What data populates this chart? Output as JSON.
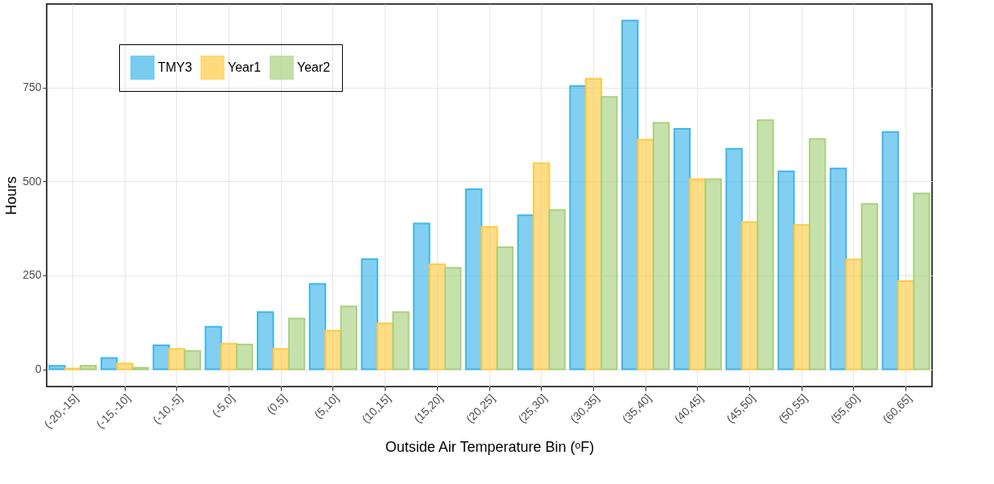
{
  "chart_data": {
    "type": "bar",
    "xlabel": "Outside Air Temperature Bin (ᵒF)",
    "ylabel": "Hours",
    "categories": [
      "(-20,-15]",
      "(-15,-10]",
      "(-10,-5]",
      "(-5,0]",
      "(0,5]",
      "(5,10]",
      "(10,15]",
      "(15,20]",
      "(20,25]",
      "(25,30]",
      "(30,35]",
      "(35,40]",
      "(40,45]",
      "(45,50]",
      "(50,55]",
      "(55,60]",
      "(60,65]"
    ],
    "series": [
      {
        "name": "TMY3",
        "color": "#3fb6ea",
        "values": [
          9,
          30,
          64,
          113,
          152,
          227,
          293,
          388,
          479,
          410,
          754,
          928,
          640,
          587,
          527,
          534,
          631
        ]
      },
      {
        "name": "Year1",
        "color": "#fdcb45",
        "values": [
          2,
          15,
          54,
          68,
          54,
          103,
          122,
          279,
          379,
          548,
          773,
          611,
          506,
          392,
          384,
          292,
          235
        ]
      },
      {
        "name": "Year2",
        "color": "#a9d17f",
        "values": [
          9,
          4,
          49,
          66,
          135,
          167,
          152,
          270,
          325,
          424,
          725,
          656,
          506,
          663,
          613,
          440,
          468
        ]
      }
    ],
    "ylim": [
      -46,
      972
    ],
    "yticks": [
      0,
      250,
      500,
      750
    ],
    "grid": true,
    "legend": "top left"
  }
}
